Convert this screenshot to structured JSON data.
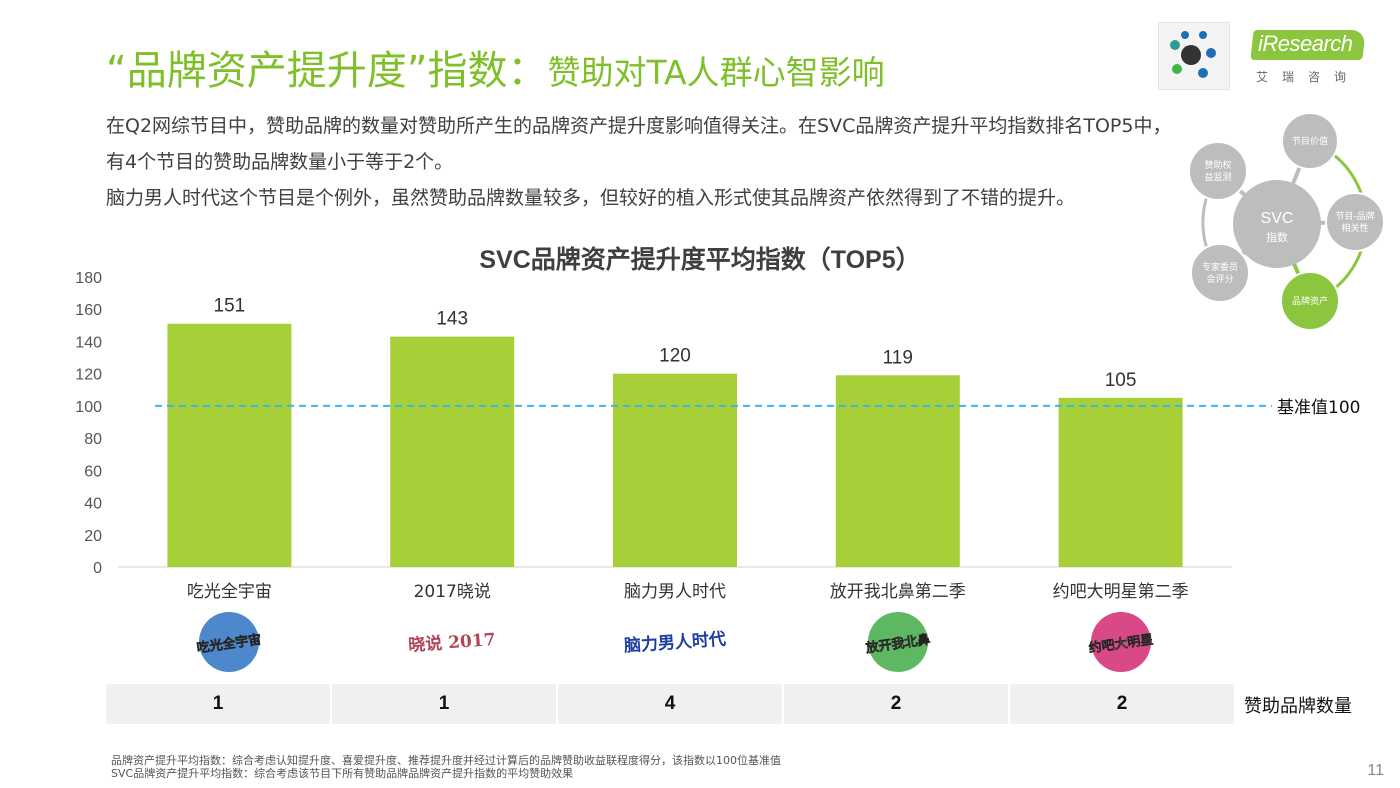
{
  "header": {
    "title_main": "“品牌资产提升度”指数：",
    "title_sub": "赞助对TA人群心智影响"
  },
  "description": [
    "在Q2网综节目中，赞助品牌的数量对赞助所产生的品牌资产提升度影响值得关注。在SVC品牌资产提升平均指数排名TOP5中，有4个节目的赞助品牌数量小于等于2个。",
    "脑力男人时代这个节目是个例外，虽然赞助品牌数量较多，但较好的植入形式使其品牌资产依然得到了不错的提升。"
  ],
  "chart_data": {
    "type": "bar",
    "title": "SVC品牌资产提升度平均指数（TOP5）",
    "categories": [
      "吃光全宇宙",
      "2017晓说",
      "脑力男人时代",
      "放开我北鼻第二季",
      "约吧大明星第二季"
    ],
    "values": [
      151,
      143,
      120,
      119,
      105
    ],
    "ylim": [
      0,
      180
    ],
    "yticks": [
      0,
      20,
      40,
      60,
      80,
      100,
      120,
      140,
      160,
      180
    ],
    "baseline": {
      "value": 100,
      "label": "基准值100",
      "color": "#3ab7e6"
    },
    "bar_color": "#a6cf38",
    "grid": false
  },
  "show_logos": [
    {
      "text": "吃光全宇宙",
      "color": "#e07b22",
      "bg": "#3a7bc8"
    },
    {
      "text": "晓说 2017",
      "color": "#b0455a",
      "bg": "#ffffff"
    },
    {
      "text": "脑力男人时代",
      "color": "#1e3f9e",
      "bg": "#ffffff"
    },
    {
      "text": "放开我北鼻",
      "color": "#ffffff",
      "bg": "#4caf50"
    },
    {
      "text": "约吧大明星",
      "color": "#ffffff",
      "bg": "#d6357a"
    }
  ],
  "sponsor_counts": {
    "label": "赞助品牌数量",
    "values": [
      "1",
      "1",
      "4",
      "2",
      "2"
    ]
  },
  "svc_diagram": {
    "center": [
      "SVC",
      "指数"
    ],
    "nodes": [
      {
        "label": [
          "节目价值"
        ],
        "highlight": false
      },
      {
        "label": [
          "节目-品牌",
          "相关性"
        ],
        "highlight": false
      },
      {
        "label": [
          "品牌资产"
        ],
        "highlight": true
      },
      {
        "label": [
          "专家委员",
          "会评分"
        ],
        "highlight": false
      },
      {
        "label": [
          "赞助权",
          "益监测"
        ],
        "highlight": false
      }
    ],
    "gray": "#bdbdbd",
    "green": "#8cc63f"
  },
  "brand": {
    "name": "iResearch",
    "cn": "艾瑞咨询"
  },
  "footnotes": [
    "品牌资产提升平均指数：综合考虑认知提升度、喜爱提升度、推荐提升度并经过计算后的品牌赞助收益联程度得分，该指数以100位基准值",
    "SVC品牌资产提升平均指数：综合考虑该节目下所有赞助品牌品牌资产提升指数的平均赞助效果"
  ],
  "page_number": "11"
}
